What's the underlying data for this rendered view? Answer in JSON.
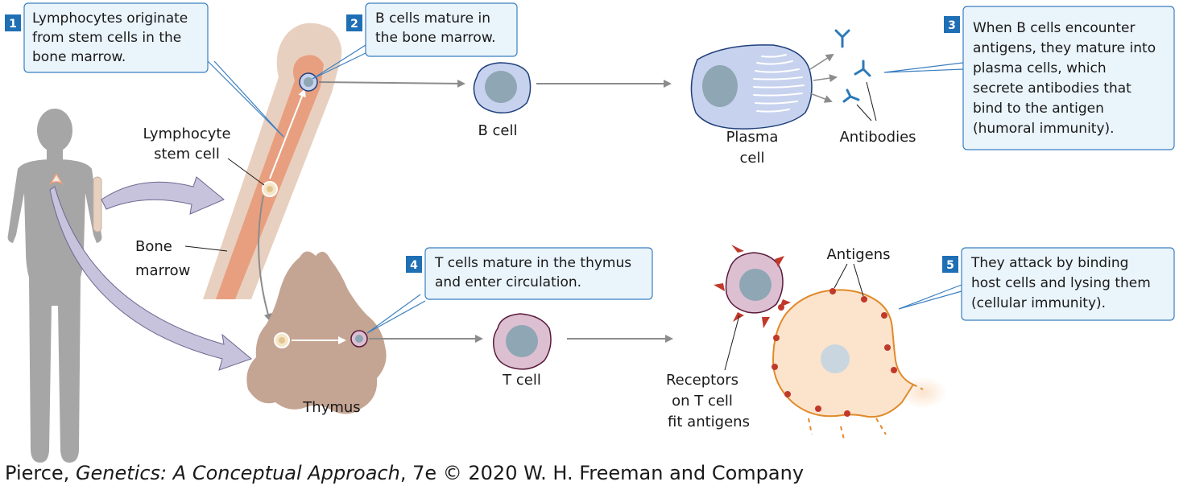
{
  "colors": {
    "callout_border": "#3b7fc1",
    "callout_fill": "#eaf4fb",
    "number_box": "#1f6fb5",
    "arrow_gray": "#8c8c8c",
    "purple_arrow": "#c7c3dc",
    "silhouette": "#a6a6a6",
    "bone": "#e8d0c0",
    "marrow": "#e89f7f",
    "thymus": "#c4a492",
    "b_cell": "#c7d2ee",
    "t_cell": "#dcc0d2",
    "nucleus": "#8fa6b4",
    "target_cell": "#fbe3cc",
    "antigen": "#c0392b",
    "antibody": "#2b7ab8"
  },
  "callouts": [
    {
      "number": "1",
      "lines": [
        "Lymphocytes originate",
        "from stem cells in the",
        "bone marrow."
      ]
    },
    {
      "number": "2",
      "lines": [
        "B cells mature in",
        "the bone marrow."
      ]
    },
    {
      "number": "3",
      "lines": [
        "When B cells encounter",
        "antigens, they mature into",
        "plasma cells, which",
        "secrete antibodies that",
        "bind to the antigen",
        "(humoral immunity)."
      ]
    },
    {
      "number": "4",
      "lines": [
        "T cells mature in the thymus",
        "and enter circulation."
      ]
    },
    {
      "number": "5",
      "lines": [
        "They attack by binding",
        "host cells and lysing them",
        "(cellular immunity)."
      ]
    }
  ],
  "labels": {
    "stem_cell": [
      "Lymphocyte",
      "stem cell"
    ],
    "bone_marrow": [
      "Bone",
      "marrow"
    ],
    "b_cell": "B cell",
    "plasma_cell": [
      "Plasma",
      "cell"
    ],
    "antibodies": "Antibodies",
    "thymus": "Thymus",
    "t_cell": "T cell",
    "antigens": "Antigens",
    "receptors": [
      "Receptors",
      "on T cell",
      "fit antigens"
    ]
  },
  "credit": {
    "prefix": "Pierce, ",
    "title": "Genetics: A Conceptual Approach",
    "suffix": ", 7e © 2020 W. H. Freeman and Company"
  }
}
